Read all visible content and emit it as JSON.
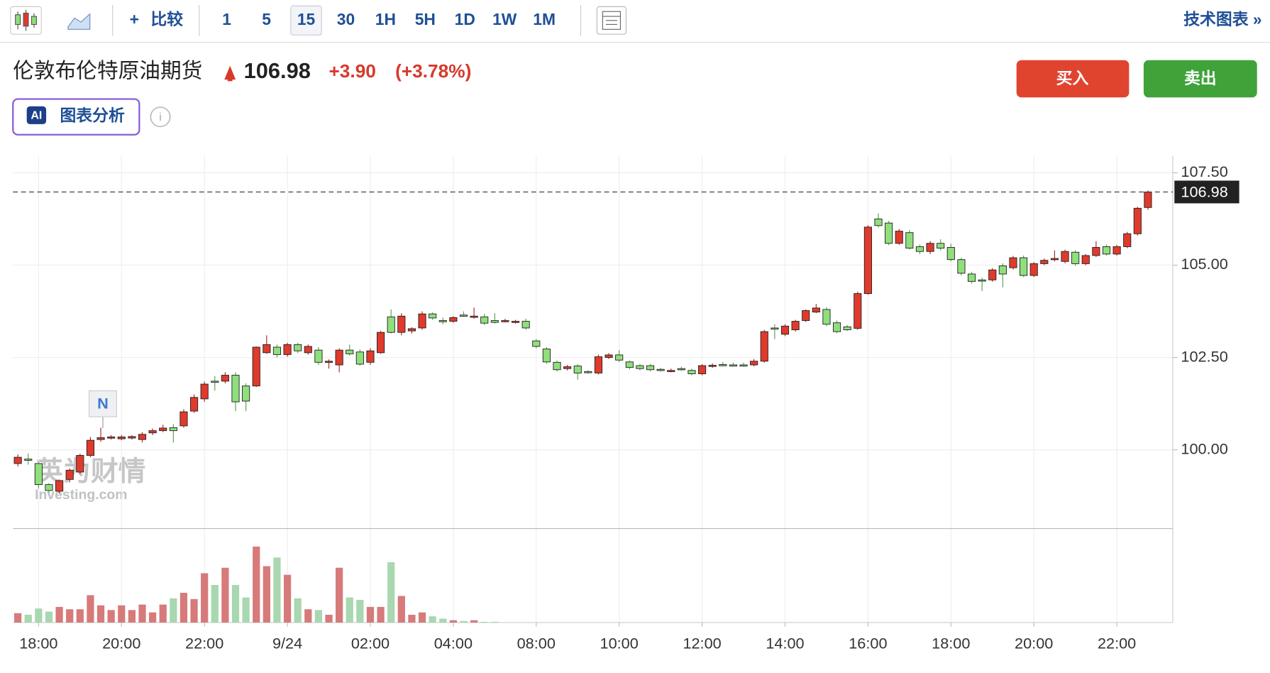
{
  "toolbar": {
    "compare_icon": "+",
    "compare": "比较",
    "intervals": [
      "1",
      "5",
      "15",
      "30",
      "1H",
      "5H",
      "1D",
      "1W",
      "1M"
    ],
    "active_interval": "15",
    "tech_chart": "技术图表 »"
  },
  "header": {
    "name": "伦敦布伦特原油期货",
    "price": "106.98",
    "change": "+3.90",
    "change_pct": "(+3.78%)",
    "buy": "买入",
    "sell": "卖出",
    "ai_badge": "AI",
    "ai_label": "图表分析",
    "info": "i"
  },
  "chart_data": {
    "type": "candlestick",
    "ohlc": [
      [
        99.63,
        99.88,
        99.55,
        99.8
      ],
      [
        99.75,
        99.9,
        99.6,
        99.73
      ],
      [
        99.63,
        99.68,
        98.95,
        99.06
      ],
      [
        99.06,
        99.1,
        98.85,
        98.9
      ],
      [
        98.88,
        99.2,
        98.82,
        99.17
      ],
      [
        99.2,
        99.5,
        99.12,
        99.45
      ],
      [
        99.4,
        99.9,
        99.35,
        99.85
      ],
      [
        99.85,
        100.35,
        99.8,
        100.26
      ],
      [
        100.28,
        100.6,
        100.22,
        100.33
      ],
      [
        100.32,
        100.4,
        100.28,
        100.35
      ],
      [
        100.3,
        100.4,
        100.26,
        100.35
      ],
      [
        100.32,
        100.4,
        100.28,
        100.36
      ],
      [
        100.28,
        100.48,
        100.2,
        100.42
      ],
      [
        100.46,
        100.58,
        100.4,
        100.52
      ],
      [
        100.52,
        100.68,
        100.48,
        100.59
      ],
      [
        100.6,
        100.7,
        100.2,
        100.52
      ],
      [
        100.65,
        101.1,
        100.6,
        101.03
      ],
      [
        101.05,
        101.5,
        101.0,
        101.42
      ],
      [
        101.38,
        101.85,
        101.3,
        101.78
      ],
      [
        101.86,
        102.0,
        101.6,
        101.84
      ],
      [
        101.86,
        102.1,
        101.8,
        102.02
      ],
      [
        102.02,
        102.1,
        101.05,
        101.3
      ],
      [
        101.73,
        101.8,
        101.05,
        101.32
      ],
      [
        101.73,
        102.8,
        101.7,
        102.78
      ],
      [
        102.63,
        103.1,
        102.6,
        102.85
      ],
      [
        102.78,
        102.85,
        102.5,
        102.58
      ],
      [
        102.58,
        102.9,
        102.52,
        102.85
      ],
      [
        102.85,
        102.9,
        102.62,
        102.68
      ],
      [
        102.63,
        102.85,
        102.58,
        102.8
      ],
      [
        102.7,
        102.78,
        102.3,
        102.37
      ],
      [
        102.37,
        102.45,
        102.2,
        102.4
      ],
      [
        102.3,
        102.75,
        102.1,
        102.7
      ],
      [
        102.7,
        102.85,
        102.55,
        102.6
      ],
      [
        102.65,
        102.72,
        102.28,
        102.32
      ],
      [
        102.37,
        102.75,
        102.3,
        102.68
      ],
      [
        102.63,
        103.22,
        102.6,
        103.18
      ],
      [
        103.6,
        103.8,
        103.15,
        103.18
      ],
      [
        103.18,
        103.7,
        103.1,
        103.62
      ],
      [
        103.22,
        103.32,
        103.15,
        103.28
      ],
      [
        103.3,
        103.75,
        103.25,
        103.68
      ],
      [
        103.68,
        103.72,
        103.52,
        103.57
      ],
      [
        103.5,
        103.58,
        103.4,
        103.47
      ],
      [
        103.48,
        103.62,
        103.44,
        103.58
      ],
      [
        103.65,
        103.75,
        103.6,
        103.62
      ],
      [
        103.6,
        103.85,
        103.55,
        103.62
      ],
      [
        103.6,
        103.68,
        103.38,
        103.43
      ],
      [
        103.5,
        103.7,
        103.42,
        103.45
      ],
      [
        103.5,
        103.55,
        103.45,
        103.5
      ],
      [
        103.46,
        103.52,
        103.42,
        103.48
      ],
      [
        103.48,
        103.55,
        103.25,
        103.3
      ],
      [
        102.95,
        103.0,
        102.75,
        102.8
      ],
      [
        102.73,
        102.78,
        102.33,
        102.38
      ],
      [
        102.37,
        102.42,
        102.12,
        102.17
      ],
      [
        102.2,
        102.3,
        102.15,
        102.25
      ],
      [
        102.27,
        102.32,
        101.9,
        102.08
      ],
      [
        102.12,
        102.16,
        102.06,
        102.1
      ],
      [
        102.08,
        102.58,
        102.04,
        102.52
      ],
      [
        102.5,
        102.62,
        102.46,
        102.57
      ],
      [
        102.57,
        102.7,
        102.38,
        102.43
      ],
      [
        102.38,
        102.42,
        102.18,
        102.23
      ],
      [
        102.28,
        102.32,
        102.15,
        102.2
      ],
      [
        102.28,
        102.32,
        102.12,
        102.17
      ],
      [
        102.18,
        102.22,
        102.12,
        102.16
      ],
      [
        102.14,
        102.2,
        102.1,
        102.15
      ],
      [
        102.2,
        102.25,
        102.14,
        102.18
      ],
      [
        102.15,
        102.2,
        102.02,
        102.06
      ],
      [
        102.06,
        102.32,
        102.02,
        102.28
      ],
      [
        102.26,
        102.34,
        102.22,
        102.29
      ],
      [
        102.31,
        102.38,
        102.26,
        102.29
      ],
      [
        102.3,
        102.36,
        102.26,
        102.29
      ],
      [
        102.3,
        102.36,
        102.25,
        102.28
      ],
      [
        102.3,
        102.46,
        102.26,
        102.4
      ],
      [
        102.4,
        103.25,
        102.36,
        103.2
      ],
      [
        103.3,
        103.4,
        103.0,
        103.28
      ],
      [
        103.13,
        103.4,
        103.08,
        103.35
      ],
      [
        103.25,
        103.52,
        103.2,
        103.48
      ],
      [
        103.5,
        103.8,
        103.46,
        103.77
      ],
      [
        103.73,
        103.95,
        103.7,
        103.84
      ],
      [
        103.8,
        103.86,
        103.35,
        103.4
      ],
      [
        103.44,
        103.5,
        103.16,
        103.2
      ],
      [
        103.33,
        103.38,
        103.22,
        103.25
      ],
      [
        103.29,
        104.28,
        103.25,
        104.23
      ],
      [
        104.23,
        106.08,
        104.2,
        106.03
      ],
      [
        106.25,
        106.4,
        106.02,
        106.07
      ],
      [
        106.14,
        106.2,
        105.54,
        105.59
      ],
      [
        105.59,
        105.98,
        105.55,
        105.92
      ],
      [
        105.88,
        105.95,
        105.42,
        105.46
      ],
      [
        105.5,
        105.56,
        105.3,
        105.37
      ],
      [
        105.37,
        105.65,
        105.3,
        105.59
      ],
      [
        105.59,
        105.7,
        105.4,
        105.46
      ],
      [
        105.48,
        105.58,
        105.1,
        105.15
      ],
      [
        105.15,
        105.2,
        104.72,
        104.78
      ],
      [
        104.76,
        104.82,
        104.5,
        104.56
      ],
      [
        104.6,
        104.66,
        104.3,
        104.58
      ],
      [
        104.6,
        104.92,
        104.55,
        104.87
      ],
      [
        104.98,
        105.05,
        104.4,
        104.76
      ],
      [
        104.93,
        105.25,
        104.88,
        105.2
      ],
      [
        105.2,
        105.26,
        104.68,
        104.72
      ],
      [
        104.72,
        105.08,
        104.68,
        105.04
      ],
      [
        105.04,
        105.18,
        105.0,
        105.13
      ],
      [
        105.15,
        105.4,
        105.1,
        105.18
      ],
      [
        105.1,
        105.42,
        105.05,
        105.37
      ],
      [
        105.35,
        105.4,
        104.98,
        105.04
      ],
      [
        105.04,
        105.3,
        105.0,
        105.26
      ],
      [
        105.26,
        105.65,
        105.22,
        105.48
      ],
      [
        105.5,
        105.56,
        105.26,
        105.3
      ],
      [
        105.3,
        105.55,
        105.26,
        105.5
      ],
      [
        105.5,
        105.9,
        105.46,
        105.85
      ],
      [
        105.85,
        106.58,
        105.8,
        106.54
      ],
      [
        106.56,
        107.02,
        106.5,
        106.98
      ]
    ],
    "volume": [
      12,
      10,
      18,
      14,
      20,
      17,
      17,
      35,
      22,
      16,
      22,
      16,
      23,
      13,
      23,
      31,
      38,
      30,
      63,
      48,
      70,
      48,
      32,
      97,
      72,
      83,
      61,
      31,
      17,
      16,
      10,
      70,
      32,
      29,
      20,
      20,
      77,
      34,
      10,
      13,
      8,
      5,
      3,
      2,
      3,
      1,
      1,
      0,
      0,
      0,
      0,
      0,
      0,
      0,
      0,
      0,
      0,
      0,
      0,
      0,
      0,
      0,
      0,
      0,
      0,
      0,
      0,
      0,
      0,
      0,
      0,
      0,
      0,
      0,
      0,
      0,
      0,
      0,
      0,
      0,
      0,
      0,
      0,
      0,
      0,
      0,
      0,
      0,
      0,
      0,
      0,
      0,
      0,
      0,
      0,
      0,
      0,
      0,
      0,
      0,
      0,
      0,
      0,
      0,
      0,
      0,
      0,
      0,
      0,
      0
    ],
    "up_color": "#e03a2c",
    "down_color": "#8fdf7c",
    "volume_up_color": "#d77a7a",
    "volume_down_color": "#a8d7b0",
    "ylim": [
      97.87,
      107.96
    ],
    "yticks": [
      {
        "value": 100,
        "label": "100.00"
      },
      {
        "value": 102.5,
        "label": "102.50"
      },
      {
        "value": 105,
        "label": "105.00"
      },
      {
        "value": 107.5,
        "label": "107.50"
      }
    ],
    "volume_ylim": [
      0,
      120
    ],
    "xlim": [
      -0.47,
      111.4
    ],
    "xticks": [
      {
        "value": 2,
        "label": "18:00"
      },
      {
        "value": 10,
        "label": "20:00"
      },
      {
        "value": 18,
        "label": "22:00"
      },
      {
        "value": 26,
        "label": "9/24"
      },
      {
        "value": 34,
        "label": "02:00"
      },
      {
        "value": 42,
        "label": "04:00"
      },
      {
        "value": 50,
        "label": "08:00"
      },
      {
        "value": 58,
        "label": "10:00"
      },
      {
        "value": 66,
        "label": "12:00"
      },
      {
        "value": 74,
        "label": "14:00"
      },
      {
        "value": 82,
        "label": "16:00"
      },
      {
        "value": 90,
        "label": "18:00"
      },
      {
        "value": 98,
        "label": "20:00"
      },
      {
        "value": 106,
        "label": "22:00"
      }
    ],
    "grid": true,
    "last_value": {
      "value": 106.98,
      "label": "106.98"
    },
    "annotation": "N",
    "watermark": {
      "cn": "英为财情",
      "en": "Investing.com"
    }
  }
}
